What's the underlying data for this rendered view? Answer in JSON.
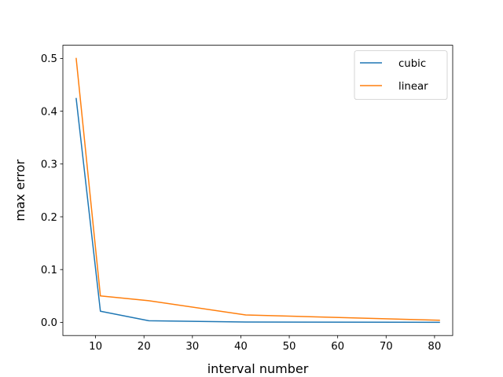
{
  "chart_data": {
    "type": "line",
    "xlabel": "interval number",
    "ylabel": "max error",
    "xlim": [
      3.25,
      83.75
    ],
    "ylim": [
      -0.025,
      0.525
    ],
    "xticks": [
      10,
      20,
      30,
      40,
      50,
      60,
      70,
      80
    ],
    "yticks": [
      0.0,
      0.1,
      0.2,
      0.3,
      0.4,
      0.5
    ],
    "ytick_labels": [
      "0.0",
      "0.1",
      "0.2",
      "0.3",
      "0.4",
      "0.5"
    ],
    "grid": false,
    "legend_position": "top-right",
    "series": [
      {
        "name": "cubic",
        "color": "#1f77b4",
        "x": [
          6,
          11,
          21,
          41,
          81
        ],
        "y": [
          0.424,
          0.021,
          0.003,
          0.0005,
          0.0001
        ]
      },
      {
        "name": "linear",
        "color": "#ff7f0e",
        "x": [
          6,
          11,
          21,
          41,
          81
        ],
        "y": [
          0.5,
          0.05,
          0.041,
          0.014,
          0.004
        ]
      }
    ]
  }
}
